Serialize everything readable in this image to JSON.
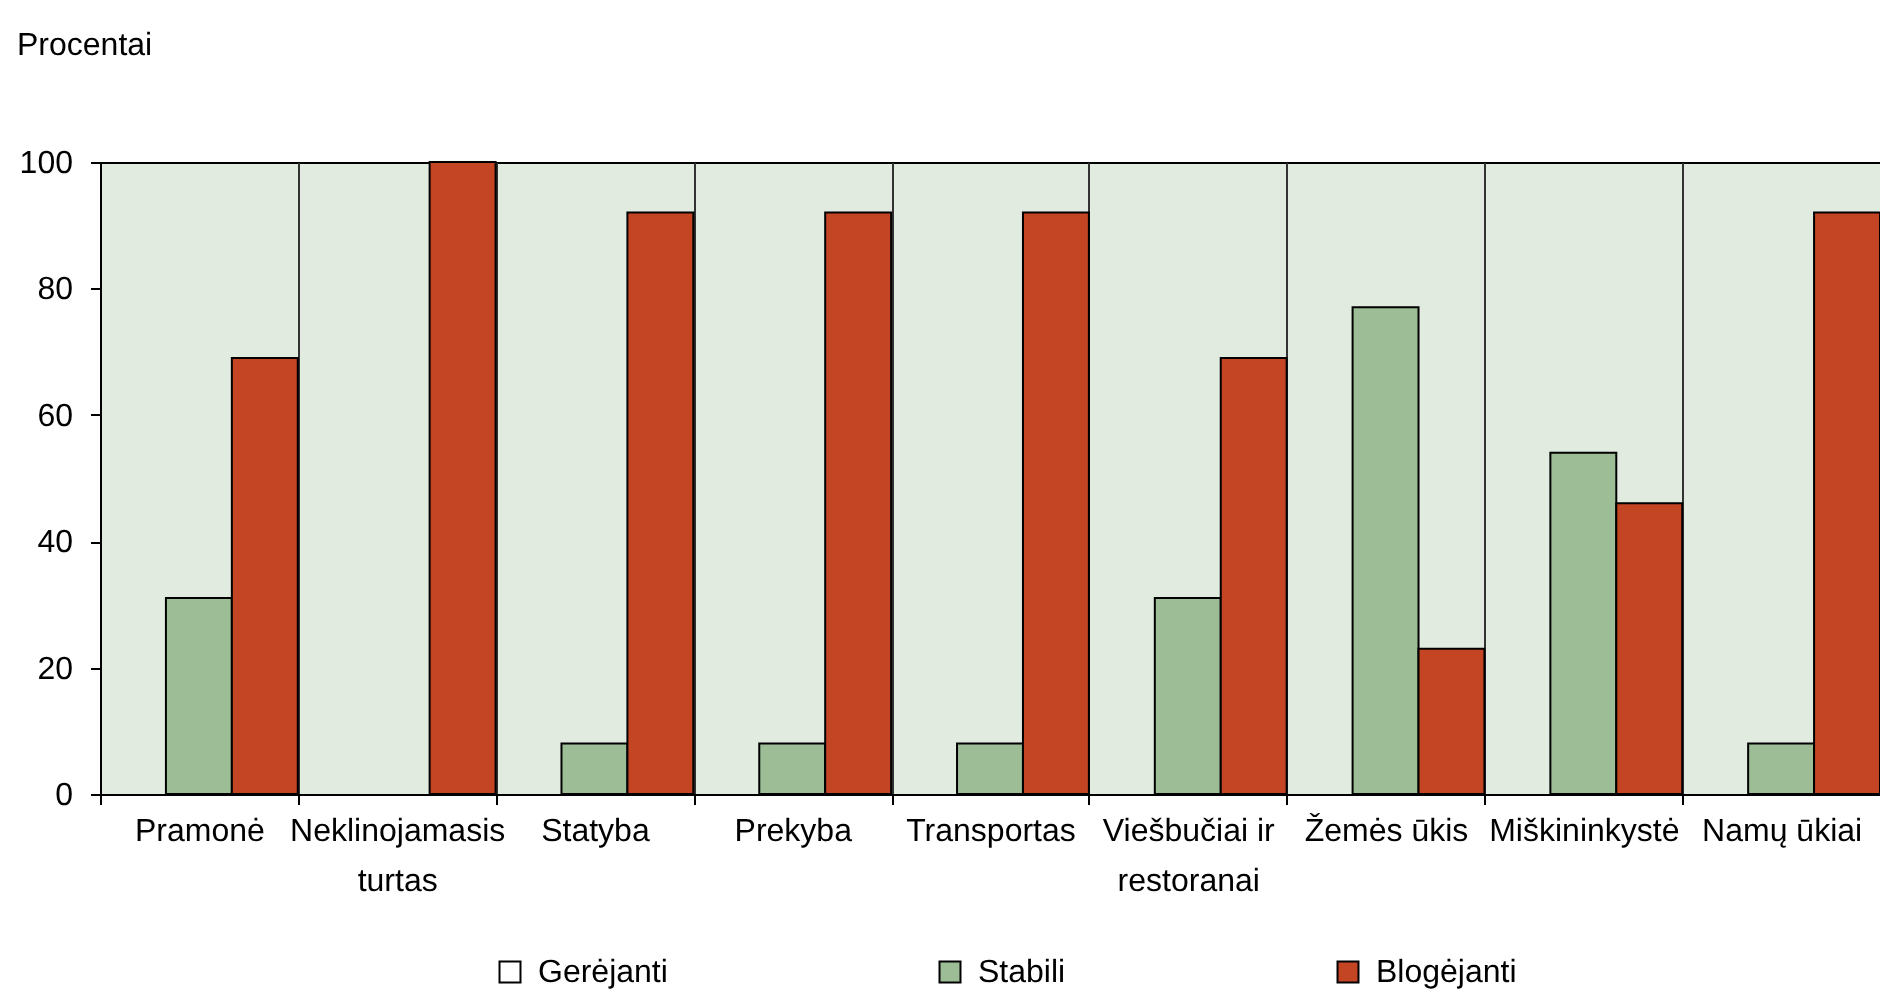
{
  "chart_data": {
    "type": "bar",
    "ylabel": "Procentai",
    "categories": [
      "Pramonė",
      "Neklinojamasis turtas",
      "Statyba",
      "Prekyba",
      "Transportas",
      "Viešbučiai ir restoranai",
      "Žemės ūkis",
      "Miškininkystė",
      "Namų ūkiai"
    ],
    "series": [
      {
        "name": "Gerėjanti",
        "color": "#ffffff",
        "values": [
          0,
          0,
          0,
          0,
          0,
          0,
          0,
          0,
          0
        ]
      },
      {
        "name": "Stabili",
        "color": "#9dbd96",
        "values": [
          31,
          0,
          8,
          8,
          8,
          31,
          77,
          54,
          8
        ]
      },
      {
        "name": "Blogėjanti",
        "color": "#c44524",
        "values": [
          69,
          100,
          92,
          92,
          92,
          69,
          23,
          46,
          92
        ]
      }
    ],
    "ylim": [
      0,
      100
    ],
    "yticks": [
      0,
      20,
      40,
      60,
      80,
      100
    ],
    "grid": "x",
    "legend": "bottom"
  }
}
